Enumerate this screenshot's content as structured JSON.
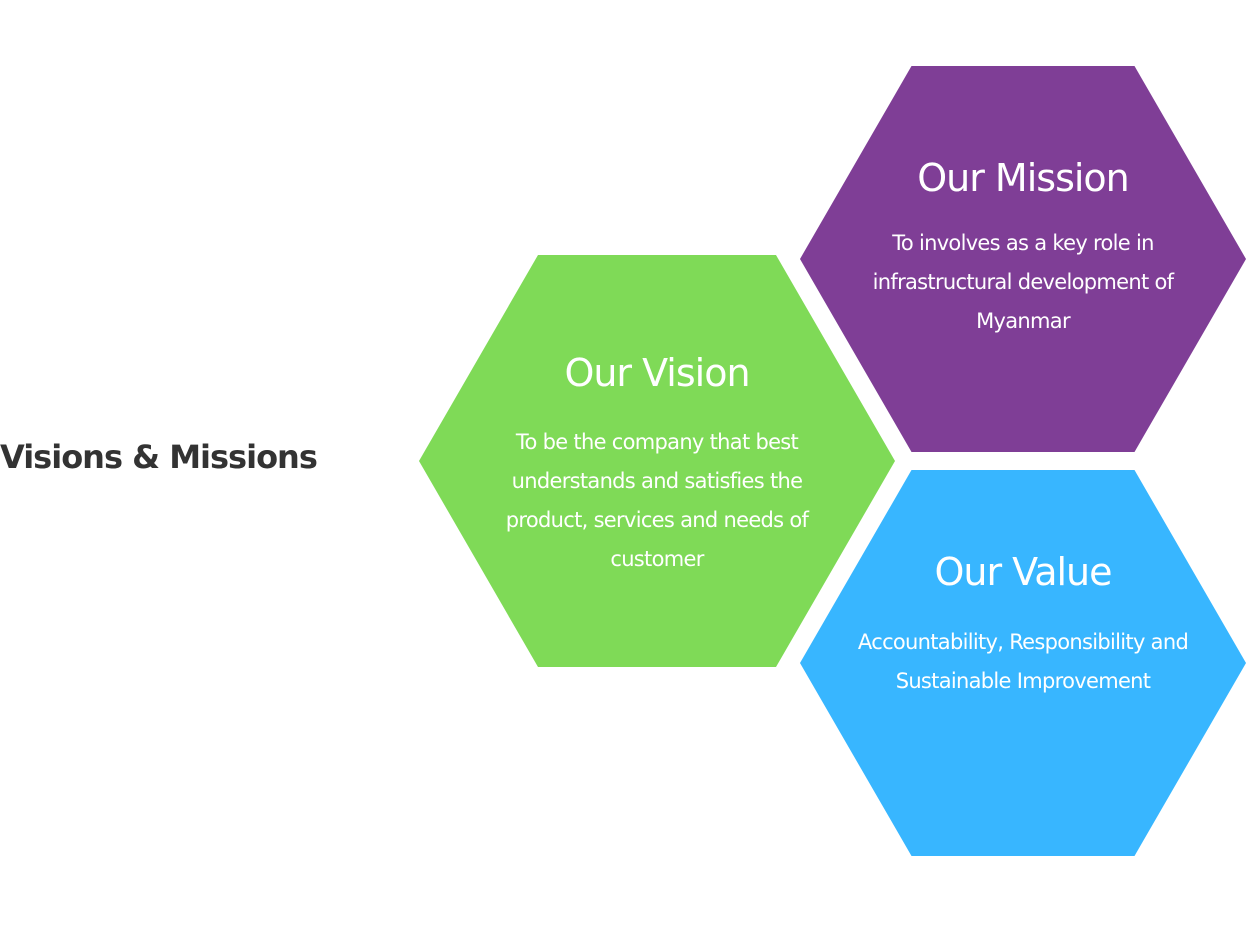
{
  "section": {
    "title": "Visions & Missions"
  },
  "cards": {
    "vision": {
      "title": "Our Vision",
      "body": "To be the company that best understands and satisfies the product, services and needs of customer",
      "color": "#7FDA57"
    },
    "mission": {
      "title": "Our Mission",
      "body": "To involves as a key role in infrastructural development of Myanmar",
      "color": "#7F3E96"
    },
    "value": {
      "title": "Our Value",
      "body": "Accountability, Responsibility and Sustainable Improvement",
      "color": "#38B6FF"
    }
  }
}
